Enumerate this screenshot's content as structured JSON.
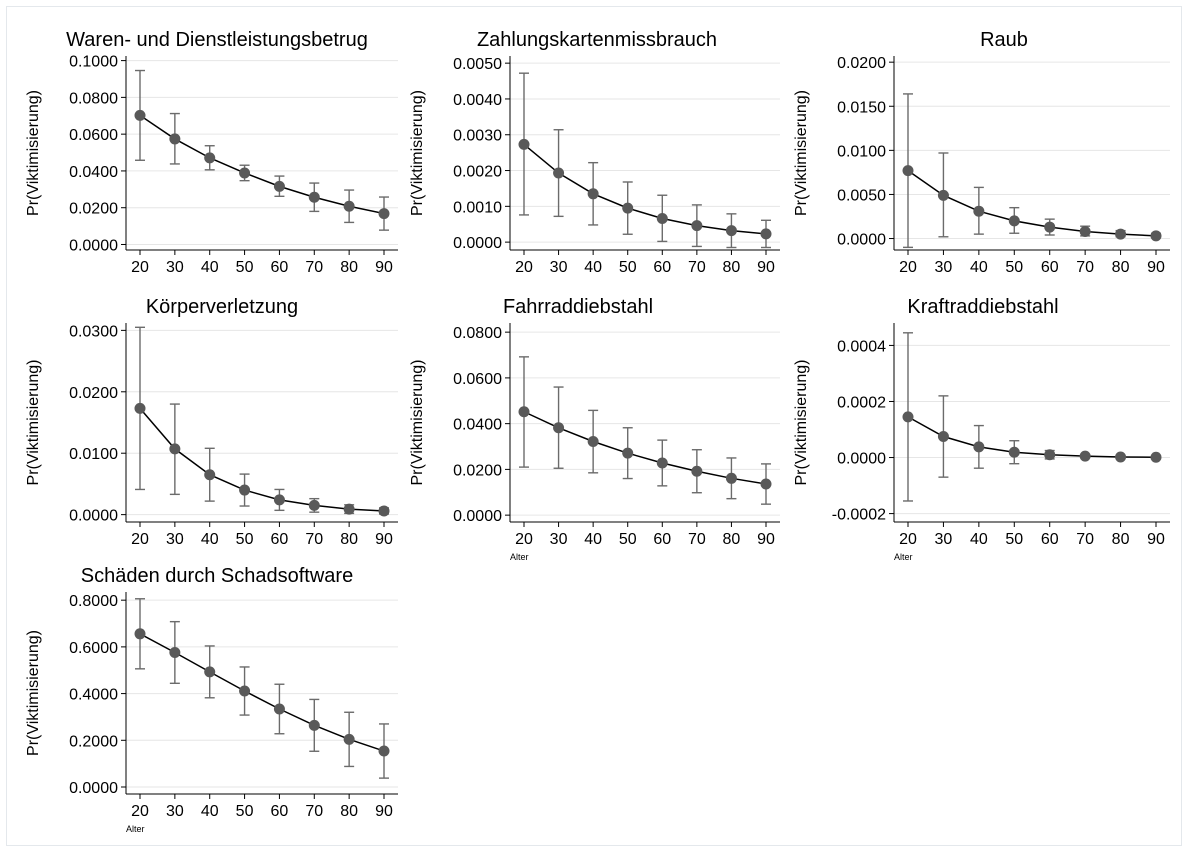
{
  "chart_data": [
    {
      "type": "line",
      "title": "Waren- und Dienstleistungsbetrug",
      "ylabel": "Pr(Viktimisierung)",
      "xlabel": "",
      "x": [
        20,
        30,
        40,
        50,
        60,
        70,
        80,
        90
      ],
      "xticks": [
        "20",
        "30",
        "40",
        "50",
        "60",
        "70",
        "80",
        "90"
      ],
      "ylim": [
        -0.003,
        0.1025
      ],
      "yticks": [
        "0.0000",
        "0.0200",
        "0.0400",
        "0.0600",
        "0.0800",
        "0.1000"
      ],
      "ytick_values": [
        0,
        0.02,
        0.04,
        0.06,
        0.08,
        0.1
      ],
      "grid": true,
      "series": [
        {
          "values": [
            0.0702,
            0.0574,
            0.0471,
            0.0389,
            0.0316,
            0.0257,
            0.0208,
            0.0168
          ],
          "lower": [
            0.0458,
            0.0438,
            0.0406,
            0.0347,
            0.0262,
            0.018,
            0.012,
            0.0078
          ],
          "upper": [
            0.0946,
            0.0712,
            0.0537,
            0.0431,
            0.0372,
            0.0334,
            0.0296,
            0.0258
          ]
        }
      ]
    },
    {
      "type": "line",
      "title": "Zahlungskartenmissbrauch",
      "ylabel": "Pr(Viktimisierung)",
      "xlabel": "",
      "x": [
        20,
        30,
        40,
        50,
        60,
        70,
        80,
        90
      ],
      "xticks": [
        "20",
        "30",
        "40",
        "50",
        "60",
        "70",
        "80",
        "90"
      ],
      "ylim": [
        -0.00022,
        0.0052
      ],
      "yticks": [
        "0.0000",
        "0.0010",
        "0.0020",
        "0.0030",
        "0.0040",
        "0.0050"
      ],
      "ytick_values": [
        0,
        0.001,
        0.002,
        0.003,
        0.004,
        0.005
      ],
      "grid": true,
      "series": [
        {
          "values": [
            0.00273,
            0.00193,
            0.00135,
            0.00095,
            0.00066,
            0.00046,
            0.00032,
            0.00023
          ],
          "lower": [
            0.00076,
            0.00072,
            0.00048,
            0.00022,
            2e-05,
            -0.00012,
            -0.00015,
            -0.00015
          ],
          "upper": [
            0.00472,
            0.00314,
            0.00222,
            0.00168,
            0.00131,
            0.00104,
            0.00079,
            0.00061
          ]
        }
      ]
    },
    {
      "type": "line",
      "title": "Raub",
      "ylabel": "Pr(Viktimisierung)",
      "xlabel": "",
      "x": [
        20,
        30,
        40,
        50,
        60,
        70,
        80,
        90
      ],
      "xticks": [
        "20",
        "30",
        "40",
        "50",
        "60",
        "70",
        "80",
        "90"
      ],
      "ylim": [
        -0.0013,
        0.0207
      ],
      "yticks": [
        "0.0000",
        "0.0050",
        "0.0100",
        "0.0150",
        "0.0200"
      ],
      "ytick_values": [
        0,
        0.005,
        0.01,
        0.015,
        0.02
      ],
      "grid": true,
      "series": [
        {
          "values": [
            0.0077,
            0.0049,
            0.0031,
            0.002,
            0.0013,
            0.0008,
            0.0005,
            0.0003
          ],
          "lower": [
            -0.001,
            0.0002,
            0.0005,
            0.0006,
            0.0004,
            0.0003,
            0.0002,
            0.0001
          ],
          "upper": [
            0.0164,
            0.0097,
            0.0058,
            0.0035,
            0.0022,
            0.0014,
            0.0009,
            0.0006
          ]
        }
      ]
    },
    {
      "type": "line",
      "title": "Körperverletzung",
      "ylabel": "Pr(Viktimisierung)",
      "xlabel": "",
      "x": [
        20,
        30,
        40,
        50,
        60,
        70,
        80,
        90
      ],
      "xticks": [
        "20",
        "30",
        "40",
        "50",
        "60",
        "70",
        "80",
        "90"
      ],
      "ylim": [
        -0.0012,
        0.0312
      ],
      "yticks": [
        "0.0000",
        "0.0100",
        "0.0200",
        "0.0300"
      ],
      "ytick_values": [
        0,
        0.01,
        0.02,
        0.03
      ],
      "grid": true,
      "series": [
        {
          "values": [
            0.0173,
            0.0107,
            0.0065,
            0.004,
            0.0024,
            0.0015,
            0.0009,
            0.0006
          ],
          "lower": [
            0.0041,
            0.0033,
            0.0022,
            0.0014,
            0.0007,
            0.0004,
            0.0002,
            0.0001
          ],
          "upper": [
            0.0305,
            0.018,
            0.0108,
            0.0066,
            0.0041,
            0.0026,
            0.0016,
            0.0011
          ]
        }
      ]
    },
    {
      "type": "line",
      "title": "Fahrraddiebstahl",
      "ylabel": "Pr(Viktimisierung)",
      "xlabel": "Alter",
      "x": [
        20,
        30,
        40,
        50,
        60,
        70,
        80,
        90
      ],
      "xticks": [
        "20",
        "30",
        "40",
        "50",
        "60",
        "70",
        "80",
        "90"
      ],
      "ylim": [
        -0.003,
        0.084
      ],
      "yticks": [
        "0.0000",
        "0.0200",
        "0.0400",
        "0.0600",
        "0.0800"
      ],
      "ytick_values": [
        0,
        0.02,
        0.04,
        0.06,
        0.08
      ],
      "grid": true,
      "series": [
        {
          "values": [
            0.0452,
            0.0382,
            0.0322,
            0.0271,
            0.0228,
            0.0192,
            0.0161,
            0.0136
          ],
          "lower": [
            0.021,
            0.0205,
            0.0185,
            0.016,
            0.0128,
            0.0098,
            0.0072,
            0.0048
          ],
          "upper": [
            0.0692,
            0.056,
            0.0458,
            0.0382,
            0.0328,
            0.0286,
            0.025,
            0.0224
          ]
        }
      ]
    },
    {
      "type": "line",
      "title": "Kraftraddiebstahl",
      "ylabel": "Pr(Viktimisierung)",
      "xlabel": "Alter",
      "x": [
        20,
        30,
        40,
        50,
        60,
        70,
        80,
        90
      ],
      "xticks": [
        "20",
        "30",
        "40",
        "50",
        "60",
        "70",
        "80",
        "90"
      ],
      "ylim": [
        -0.00023,
        0.00048
      ],
      "yticks": [
        "-0.0002",
        "0.0000",
        "0.0002",
        "0.0004"
      ],
      "ytick_values": [
        -0.0002,
        0,
        0.0002,
        0.0004
      ],
      "grid": true,
      "series": [
        {
          "values": [
            0.000145,
            7.5e-05,
            3.8e-05,
            1.9e-05,
            1e-05,
            5e-06,
            2e-06,
            1e-06
          ],
          "lower": [
            -0.000155,
            -7e-05,
            -3.8e-05,
            -2.2e-05,
            -5e-06,
            0.0,
            0.0,
            0.0
          ],
          "upper": [
            0.000445,
            0.00022,
            0.000114,
            6e-05,
            2.5e-05,
            1e-05,
            4e-06,
            2e-06
          ]
        }
      ]
    },
    {
      "type": "line",
      "title": "Schäden durch Schadsoftware",
      "ylabel": "Pr(Viktimisierung)",
      "xlabel": "Alter",
      "x": [
        20,
        30,
        40,
        50,
        60,
        70,
        80,
        90
      ],
      "xticks": [
        "20",
        "30",
        "40",
        "50",
        "60",
        "70",
        "80",
        "90"
      ],
      "ylim": [
        -0.03,
        0.835
      ],
      "yticks": [
        "0.0000",
        "0.2000",
        "0.4000",
        "0.6000",
        "0.8000"
      ],
      "ytick_values": [
        0,
        0.2,
        0.4,
        0.6,
        0.8
      ],
      "grid": true,
      "series": [
        {
          "values": [
            0.656,
            0.576,
            0.493,
            0.411,
            0.334,
            0.264,
            0.204,
            0.154
          ],
          "lower": [
            0.506,
            0.444,
            0.382,
            0.308,
            0.228,
            0.153,
            0.088,
            0.038
          ],
          "upper": [
            0.806,
            0.708,
            0.604,
            0.514,
            0.44,
            0.375,
            0.32,
            0.27
          ]
        }
      ]
    }
  ]
}
